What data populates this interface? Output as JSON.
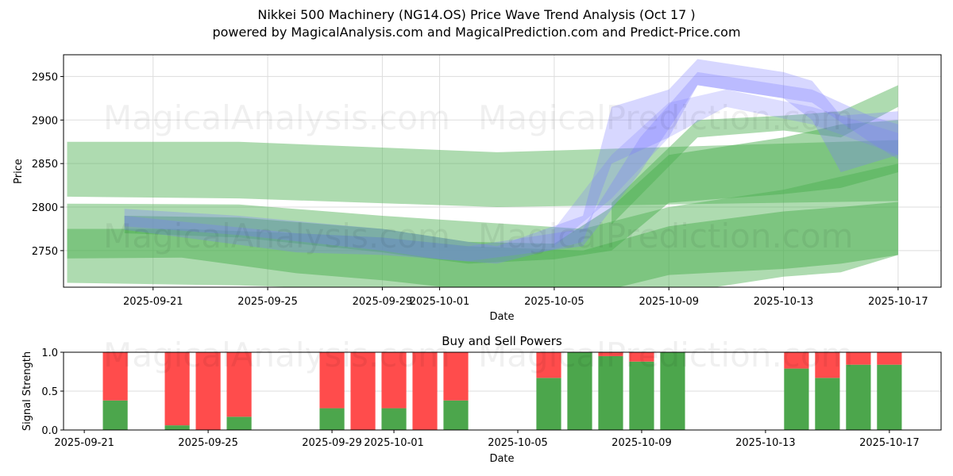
{
  "title": "Nikkei 500 Machinery (NG14.OS) Price Wave Trend Analysis (Oct 17 )",
  "subtitle": "powered by MagicalAnalysis.com and MagicalPrediction.com and Predict-Price.com",
  "watermarks": [
    "MagicalAnalysis.com",
    "MagicalPrediction.com"
  ],
  "colors": {
    "green_band": "#4caf50",
    "blue_band": "#7b7bff",
    "buy": "#4ca64c",
    "sell": "#ff4c4c",
    "grid": "#dddddd"
  },
  "chart_data": [
    {
      "type": "area",
      "title": "",
      "xlabel": "Date",
      "ylabel": "Price",
      "ylim": [
        2708,
        2975
      ],
      "xlim": [
        "2025-09-17T21:00",
        "2025-10-18T12:00"
      ],
      "grid": true,
      "yticks": [
        2750,
        2800,
        2850,
        2900,
        2950
      ],
      "xticks": [
        "2025-09-21",
        "2025-09-25",
        "2025-09-29",
        "2025-10-01",
        "2025-10-05",
        "2025-10-09",
        "2025-10-13",
        "2025-10-17"
      ],
      "series": [
        {
          "name": "green-band-upper-wide",
          "color": "green",
          "opacity": 0.45,
          "x": [
            "2025-09-18",
            "2025-09-24",
            "2025-10-03",
            "2025-10-17"
          ],
          "upper": [
            2875,
            2875,
            2863,
            2877
          ],
          "lower": [
            2812,
            2810,
            2800,
            2807
          ]
        },
        {
          "name": "green-band-lower-wide",
          "color": "green",
          "opacity": 0.45,
          "x": [
            "2025-09-18",
            "2025-09-24",
            "2025-09-29",
            "2025-10-06",
            "2025-10-09",
            "2025-10-13",
            "2025-10-15",
            "2025-10-17"
          ],
          "upper": [
            2804,
            2803,
            2790,
            2775,
            2800,
            2820,
            2835,
            2850
          ],
          "lower": [
            2713,
            2710,
            2705,
            2690,
            2700,
            2720,
            2725,
            2745
          ]
        },
        {
          "name": "green-band-mid",
          "color": "green",
          "opacity": 0.5,
          "x": [
            "2025-09-18",
            "2025-09-22",
            "2025-09-26",
            "2025-09-29",
            "2025-10-02",
            "2025-10-06",
            "2025-10-09",
            "2025-10-13",
            "2025-10-15",
            "2025-10-17"
          ],
          "upper": [
            2775,
            2775,
            2770,
            2765,
            2755,
            2750,
            2778,
            2795,
            2800,
            2806
          ],
          "lower": [
            2741,
            2742,
            2724,
            2716,
            2705,
            2698,
            2722,
            2729,
            2735,
            2745
          ]
        },
        {
          "name": "green-band-rising",
          "color": "green",
          "opacity": 0.5,
          "x": [
            "2025-09-20",
            "2025-09-24",
            "2025-09-29",
            "2025-10-02",
            "2025-10-05",
            "2025-10-07",
            "2025-10-09",
            "2025-10-13",
            "2025-10-15",
            "2025-10-17"
          ],
          "upper": [
            2790,
            2788,
            2775,
            2760,
            2758,
            2800,
            2860,
            2880,
            2895,
            2900
          ],
          "lower": [
            2770,
            2765,
            2748,
            2735,
            2740,
            2750,
            2805,
            2815,
            2822,
            2840
          ]
        },
        {
          "name": "green-band-top-right",
          "color": "green",
          "opacity": 0.45,
          "x": [
            "2025-10-07",
            "2025-10-10",
            "2025-10-13",
            "2025-10-15",
            "2025-10-17"
          ],
          "upper": [
            2805,
            2900,
            2905,
            2910,
            2940
          ],
          "lower": [
            2780,
            2880,
            2888,
            2880,
            2915
          ]
        },
        {
          "name": "blue-wave-1",
          "color": "blue",
          "opacity": 0.3,
          "x": [
            "2025-09-20",
            "2025-09-24",
            "2025-09-29",
            "2025-10-01",
            "2025-10-03",
            "2025-10-06",
            "2025-10-07",
            "2025-10-09",
            "2025-10-10",
            "2025-10-13",
            "2025-10-14",
            "2025-10-15",
            "2025-10-17"
          ],
          "upper": [
            2798,
            2790,
            2775,
            2765,
            2755,
            2790,
            2915,
            2935,
            2970,
            2955,
            2945,
            2905,
            2910
          ],
          "lower": [
            2778,
            2768,
            2750,
            2740,
            2735,
            2760,
            2850,
            2880,
            2940,
            2925,
            2900,
            2840,
            2860
          ]
        },
        {
          "name": "blue-wave-2",
          "color": "blue",
          "opacity": 0.3,
          "x": [
            "2025-09-20",
            "2025-09-26",
            "2025-09-29",
            "2025-10-02",
            "2025-10-06",
            "2025-10-08",
            "2025-10-10",
            "2025-10-14",
            "2025-10-16",
            "2025-10-17"
          ],
          "upper": [
            2790,
            2770,
            2765,
            2755,
            2775,
            2880,
            2955,
            2935,
            2905,
            2895
          ],
          "lower": [
            2774,
            2748,
            2745,
            2738,
            2755,
            2840,
            2940,
            2920,
            2875,
            2855
          ]
        },
        {
          "name": "blue-wave-3",
          "color": "blue",
          "opacity": 0.25,
          "x": [
            "2025-10-05",
            "2025-10-07",
            "2025-10-09",
            "2025-10-11",
            "2025-10-14",
            "2025-10-17"
          ],
          "upper": [
            2775,
            2860,
            2920,
            2935,
            2915,
            2885
          ],
          "lower": [
            2755,
            2810,
            2880,
            2915,
            2895,
            2860
          ]
        }
      ]
    },
    {
      "type": "bar",
      "title": "Buy and Sell Powers",
      "xlabel": "Date",
      "ylabel": "Signal Strength",
      "ylim": [
        0,
        1
      ],
      "grid": true,
      "yticks": [
        "0.0",
        "0.5",
        "1.0"
      ],
      "xticks": [
        "2025-09-21",
        "2025-09-25",
        "2025-09-29",
        "2025-10-01",
        "2025-10-05",
        "2025-10-09",
        "2025-10-13",
        "2025-10-17"
      ],
      "categories": [
        "2025-09-22",
        "2025-09-24",
        "2025-09-25",
        "2025-09-26",
        "2025-09-29",
        "2025-09-30",
        "2025-10-01",
        "2025-10-02",
        "2025-10-03",
        "2025-10-06",
        "2025-10-07",
        "2025-10-08",
        "2025-10-09",
        "2025-10-10",
        "2025-10-14",
        "2025-10-15",
        "2025-10-16",
        "2025-10-17"
      ],
      "series": [
        {
          "name": "Buy",
          "color": "buy",
          "values": [
            0.38,
            0.06,
            0.0,
            0.17,
            0.28,
            0.0,
            0.28,
            0.0,
            0.38,
            0.67,
            1.0,
            0.95,
            0.88,
            1.0,
            0.79,
            0.67,
            0.84,
            0.84
          ]
        },
        {
          "name": "Sell",
          "color": "sell",
          "values": [
            0.62,
            0.94,
            1.0,
            0.83,
            0.72,
            1.0,
            0.72,
            1.0,
            0.62,
            0.33,
            0.0,
            0.05,
            0.12,
            0.0,
            0.21,
            0.33,
            0.16,
            0.16
          ]
        }
      ]
    }
  ]
}
